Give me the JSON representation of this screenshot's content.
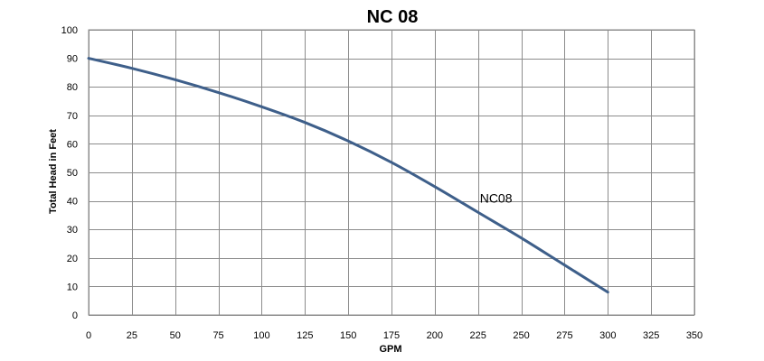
{
  "chart_data": {
    "type": "line",
    "title": "NC 08",
    "xlabel": "GPM",
    "ylabel": "Total Head in Feet",
    "xlim": [
      0,
      350
    ],
    "ylim": [
      0,
      100
    ],
    "x_ticks": [
      0,
      25,
      50,
      75,
      100,
      125,
      150,
      175,
      200,
      225,
      250,
      275,
      300,
      325,
      350
    ],
    "y_ticks": [
      0,
      10,
      20,
      30,
      40,
      50,
      60,
      70,
      80,
      90,
      100
    ],
    "grid": true,
    "legend": "none",
    "series": [
      {
        "name": "NC08",
        "color": "#3e5f8a",
        "x": [
          0,
          25,
          50,
          75,
          100,
          125,
          150,
          175,
          200,
          225,
          250,
          275,
          300
        ],
        "y": [
          90,
          86.5,
          82.5,
          78,
          73,
          67.5,
          61,
          53.5,
          45,
          36,
          27,
          17.5,
          8
        ]
      }
    ]
  }
}
